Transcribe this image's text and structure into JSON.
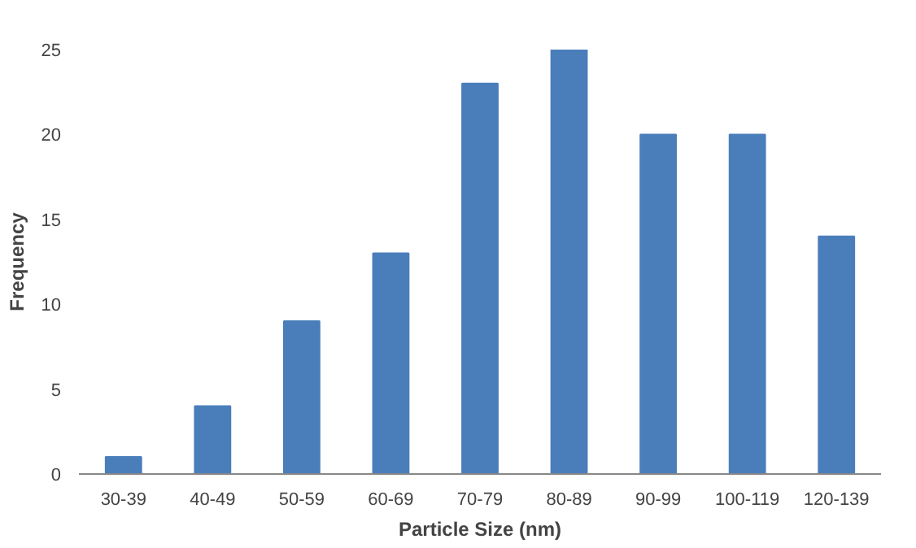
{
  "chart_data": {
    "type": "bar",
    "xlabel": "Particle Size (nm)",
    "ylabel": "Frequency",
    "categories": [
      "30-39",
      "40-49",
      "50-59",
      "60-69",
      "70-79",
      "80-89",
      "90-99",
      "100-119",
      "120-139"
    ],
    "values": [
      1,
      4,
      9,
      13,
      23,
      25,
      20,
      20,
      14
    ],
    "color": "#4a7ebb",
    "ylim": [
      0,
      25
    ],
    "yticks": [
      0,
      5,
      10,
      15,
      20,
      25
    ],
    "grid": false
  }
}
